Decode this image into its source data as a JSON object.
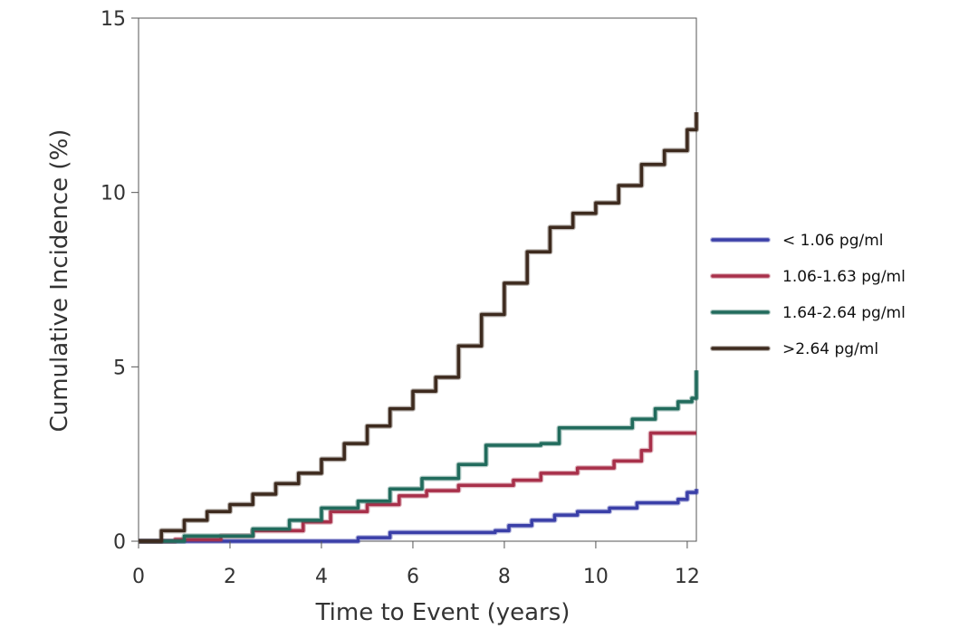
{
  "chart_data": {
    "type": "line",
    "title": "",
    "xlabel": "Time to Event (years)",
    "ylabel": "Cumulative Incidence (%)",
    "xlim": [
      0,
      12.2
    ],
    "ylim": [
      0,
      15
    ],
    "x_ticks": [
      {
        "value": 0,
        "label": "0"
      },
      {
        "value": 2,
        "label": "2"
      },
      {
        "value": 4,
        "label": "4"
      },
      {
        "value": 6,
        "label": "6"
      },
      {
        "value": 8,
        "label": "8"
      },
      {
        "value": 10,
        "label": "10"
      },
      {
        "value": 12,
        "label": "12"
      }
    ],
    "y_ticks": [
      {
        "value": 0,
        "label": "0"
      },
      {
        "value": 5,
        "label": "5"
      },
      {
        "value": 10,
        "label": "10"
      },
      {
        "value": 15,
        "label": "15"
      }
    ],
    "grid": false,
    "legend_position": "right",
    "series": [
      {
        "name": "< 1.06 pg/ml",
        "color": "#3a3fa8",
        "x": [
          0,
          4.6,
          4.8,
          5.5,
          7.8,
          8.1,
          8.6,
          9.1,
          9.6,
          10.3,
          10.9,
          11.8,
          12.0,
          12.2
        ],
        "y": [
          0,
          0,
          0.1,
          0.25,
          0.3,
          0.45,
          0.6,
          0.75,
          0.85,
          0.95,
          1.1,
          1.2,
          1.4,
          1.5
        ]
      },
      {
        "name": "1.06-1.63 pg/ml",
        "color": "#a8304a",
        "x": [
          0,
          0.8,
          1.8,
          2.5,
          3.6,
          4.2,
          5.0,
          5.7,
          6.3,
          7.0,
          8.2,
          8.8,
          9.6,
          10.4,
          11.0,
          11.2,
          12.2
        ],
        "y": [
          0,
          0.05,
          0.15,
          0.3,
          0.55,
          0.85,
          1.05,
          1.3,
          1.45,
          1.6,
          1.75,
          1.95,
          2.1,
          2.3,
          2.6,
          3.1,
          3.1
        ]
      },
      {
        "name": "1.64-2.64 pg/ml",
        "color": "#216b5c",
        "x": [
          0,
          1.0,
          2.5,
          3.3,
          4.0,
          4.8,
          5.5,
          6.2,
          7.0,
          7.6,
          8.8,
          9.2,
          10.8,
          11.3,
          11.8,
          12.1,
          12.2
        ],
        "y": [
          0,
          0.15,
          0.35,
          0.6,
          0.95,
          1.15,
          1.5,
          1.8,
          2.2,
          2.75,
          2.8,
          3.25,
          3.5,
          3.8,
          4.0,
          4.1,
          4.9
        ]
      },
      {
        "name": ">2.64 pg/ml",
        "color": "#3d2a1e",
        "x": [
          0,
          0.5,
          1.0,
          1.5,
          2.0,
          2.5,
          3.0,
          3.5,
          4.0,
          4.5,
          5.0,
          5.5,
          6.0,
          6.5,
          7.0,
          7.5,
          8.0,
          8.5,
          9.0,
          9.5,
          10.0,
          10.5,
          11.0,
          11.5,
          12.0,
          12.2
        ],
        "y": [
          0,
          0.3,
          0.6,
          0.85,
          1.05,
          1.35,
          1.65,
          1.95,
          2.35,
          2.8,
          3.3,
          3.8,
          4.3,
          4.7,
          5.6,
          6.5,
          7.4,
          8.3,
          9.0,
          9.4,
          9.7,
          10.2,
          10.8,
          11.2,
          11.8,
          12.3
        ]
      }
    ]
  }
}
